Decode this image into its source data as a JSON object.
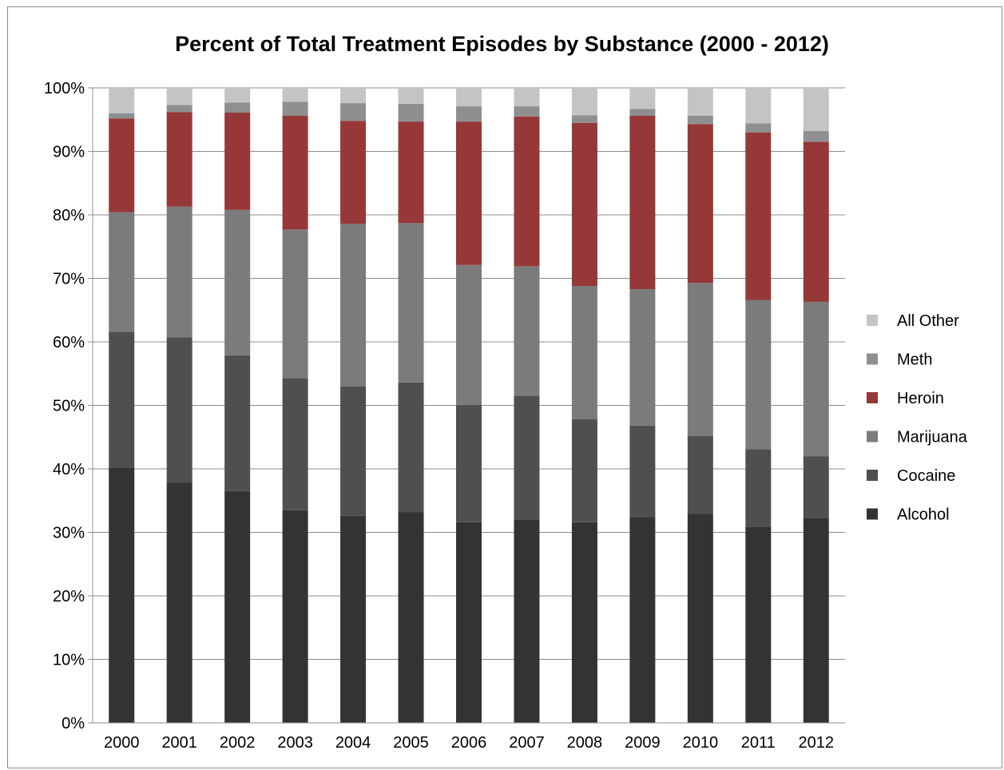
{
  "chart_data": {
    "type": "bar",
    "stacked": true,
    "title": "Percent of Total Treatment Episodes by Substance (2000 - 2012)",
    "categories": [
      "2000",
      "2001",
      "2002",
      "2003",
      "2004",
      "2005",
      "2006",
      "2007",
      "2008",
      "2009",
      "2010",
      "2011",
      "2012"
    ],
    "y_ticks": [
      "0%",
      "10%",
      "20%",
      "30%",
      "40%",
      "50%",
      "60%",
      "70%",
      "80%",
      "90%",
      "100%"
    ],
    "ylim": [
      0,
      100
    ],
    "grid": true,
    "legend_position": "right",
    "series": [
      {
        "name": "Alcohol",
        "color": "#333333",
        "values": [
          40.2,
          37.8,
          36.5,
          33.5,
          32.6,
          33.2,
          31.6,
          32.0,
          31.6,
          32.4,
          32.9,
          30.9,
          32.2
        ]
      },
      {
        "name": "Cocaine",
        "color": "#4f4f4f",
        "values": [
          21.4,
          22.9,
          21.4,
          20.8,
          20.4,
          20.4,
          18.5,
          19.5,
          16.2,
          14.4,
          12.3,
          12.2,
          9.8
        ]
      },
      {
        "name": "Marijuana",
        "color": "#7b7b7b",
        "values": [
          18.8,
          20.6,
          22.9,
          23.4,
          25.6,
          25.1,
          22.0,
          20.4,
          21.0,
          21.5,
          24.1,
          23.5,
          24.3
        ]
      },
      {
        "name": "Heroin",
        "color": "#963838",
        "values": [
          14.8,
          14.9,
          15.3,
          17.9,
          16.2,
          16.0,
          22.6,
          23.6,
          25.7,
          27.3,
          25.0,
          26.4,
          25.2
        ]
      },
      {
        "name": "Meth",
        "color": "#8f8f8f",
        "values": [
          0.8,
          1.1,
          1.6,
          2.2,
          2.8,
          2.8,
          2.4,
          1.6,
          1.2,
          1.1,
          1.3,
          1.4,
          1.7
        ]
      },
      {
        "name": "All Other",
        "color": "#c4c4c4",
        "values": [
          4.0,
          2.7,
          2.3,
          2.2,
          2.4,
          2.5,
          2.9,
          2.9,
          4.3,
          3.3,
          4.4,
          5.6,
          6.8
        ]
      }
    ],
    "legend_order": [
      "All Other",
      "Meth",
      "Heroin",
      "Marijuana",
      "Cocaine",
      "Alcohol"
    ]
  }
}
